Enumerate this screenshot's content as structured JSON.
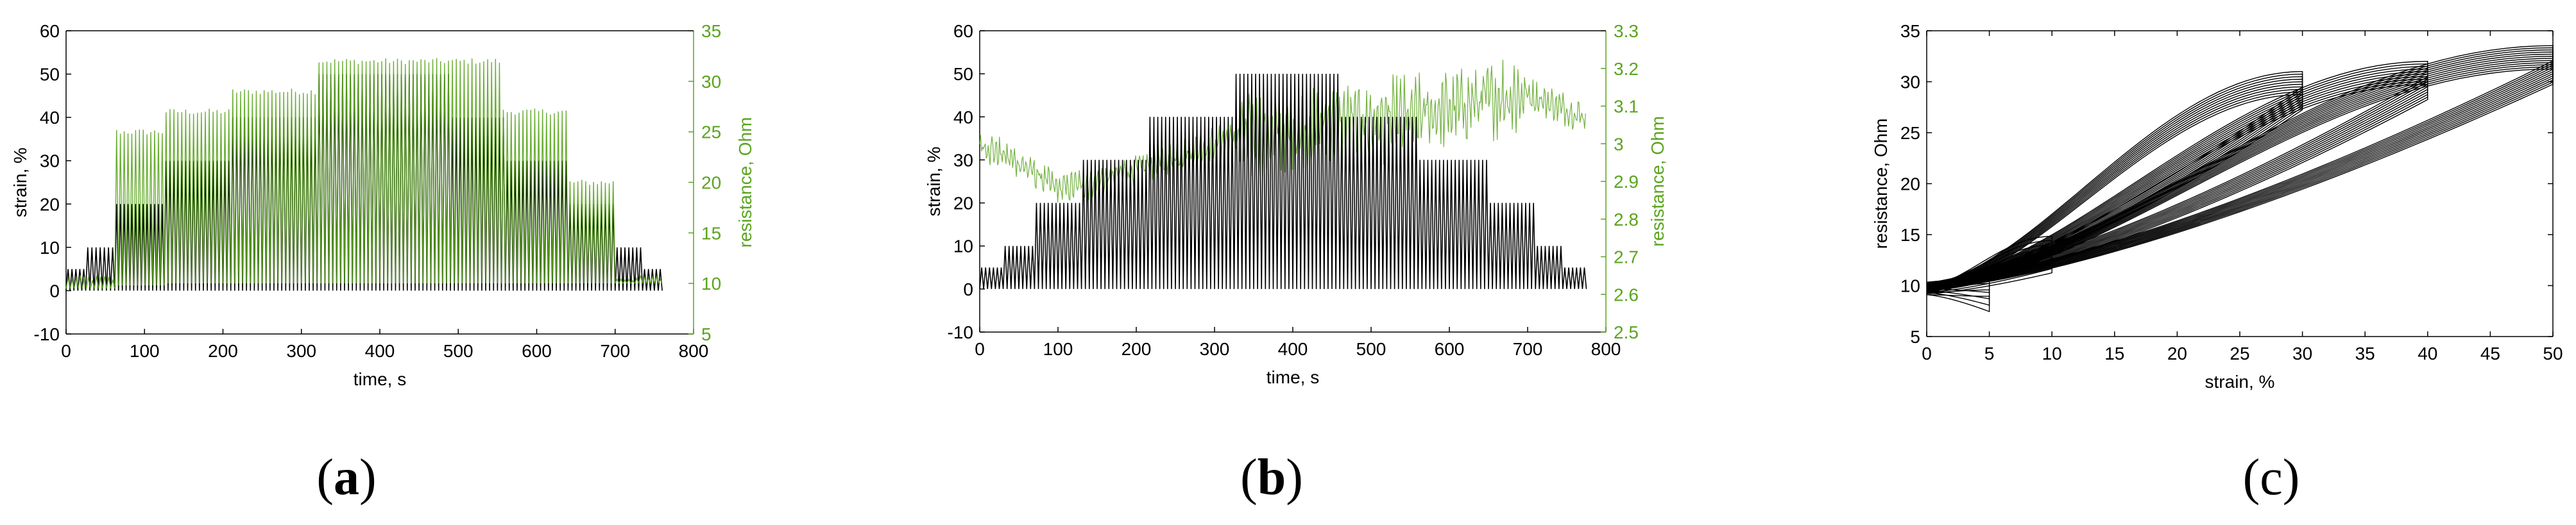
{
  "colors": {
    "strain": "#000000",
    "resistance": "#5aa51e",
    "axis": "#000000"
  },
  "captions": {
    "a": "a",
    "b": "b",
    "c": "c"
  },
  "chart_data": [
    {
      "id": "a",
      "type": "line",
      "xlabel": "time, s",
      "ylabel": "strain, %",
      "y2label": "resistance, Ohm",
      "xlim": [
        0,
        800
      ],
      "ylim": [
        -10,
        60
      ],
      "y2lim": [
        5,
        35
      ],
      "xticks": [
        0,
        100,
        200,
        300,
        400,
        500,
        600,
        700,
        800
      ],
      "yticks": [
        -10,
        0,
        10,
        20,
        30,
        40,
        50,
        60
      ],
      "y2ticks": [
        5,
        10,
        15,
        20,
        25,
        30,
        35
      ],
      "strain_segments": [
        {
          "t0": 0,
          "t1": 25,
          "amp": 5
        },
        {
          "t0": 25,
          "t1": 62,
          "amp": 10
        },
        {
          "t0": 62,
          "t1": 125,
          "amp": 20
        },
        {
          "t0": 125,
          "t1": 210,
          "amp": 30
        },
        {
          "t0": 210,
          "t1": 320,
          "amp": 40
        },
        {
          "t0": 320,
          "t1": 490,
          "amp": 50
        },
        {
          "t0": 490,
          "t1": 560,
          "amp": 40
        },
        {
          "t0": 560,
          "t1": 640,
          "amp": 30
        },
        {
          "t0": 640,
          "t1": 700,
          "amp": 20
        },
        {
          "t0": 700,
          "t1": 735,
          "amp": 10
        },
        {
          "t0": 735,
          "t1": 760,
          "amp": 5
        }
      ],
      "resistance_segments": [
        {
          "t0": 0,
          "t1": 62,
          "lo": 9.5,
          "hi": 10.5
        },
        {
          "t0": 62,
          "t1": 125,
          "lo": 9.8,
          "hi": 25
        },
        {
          "t0": 125,
          "t1": 210,
          "lo": 10,
          "hi": 27
        },
        {
          "t0": 210,
          "t1": 320,
          "lo": 10,
          "hi": 29
        },
        {
          "t0": 320,
          "t1": 555,
          "lo": 10,
          "hi": 32
        },
        {
          "t0": 555,
          "t1": 640,
          "lo": 10,
          "hi": 27
        },
        {
          "t0": 640,
          "t1": 700,
          "lo": 10,
          "hi": 20
        },
        {
          "t0": 700,
          "t1": 760,
          "lo": 10,
          "hi": 10.5
        }
      ]
    },
    {
      "id": "b",
      "type": "line",
      "xlabel": "time, s",
      "ylabel": "strain, %",
      "y2label": "resistance, Ohm",
      "xlim": [
        0,
        800
      ],
      "ylim": [
        -10,
        60
      ],
      "y2lim": [
        2.5,
        3.3
      ],
      "xticks": [
        0,
        100,
        200,
        300,
        400,
        500,
        600,
        700,
        800
      ],
      "yticks": [
        -10,
        0,
        10,
        20,
        30,
        40,
        50,
        60
      ],
      "y2ticks": [
        2.5,
        2.6,
        2.7,
        2.8,
        2.9,
        3,
        3.1,
        3.2,
        3.3
      ],
      "strain_segments": [
        {
          "t0": 0,
          "t1": 30,
          "amp": 5
        },
        {
          "t0": 30,
          "t1": 70,
          "amp": 10
        },
        {
          "t0": 70,
          "t1": 130,
          "amp": 20
        },
        {
          "t0": 130,
          "t1": 215,
          "amp": 30
        },
        {
          "t0": 215,
          "t1": 325,
          "amp": 40
        },
        {
          "t0": 325,
          "t1": 460,
          "amp": 50
        },
        {
          "t0": 460,
          "t1": 560,
          "amp": 40
        },
        {
          "t0": 560,
          "t1": 650,
          "amp": 30
        },
        {
          "t0": 650,
          "t1": 710,
          "amp": 20
        },
        {
          "t0": 710,
          "t1": 745,
          "amp": 10
        },
        {
          "t0": 745,
          "t1": 775,
          "amp": 5
        }
      ],
      "resistance_trend": [
        {
          "t": 0,
          "r": 3.0
        },
        {
          "t": 50,
          "r": 2.95
        },
        {
          "t": 100,
          "r": 2.88
        },
        {
          "t": 150,
          "r": 2.9
        },
        {
          "t": 200,
          "r": 2.93
        },
        {
          "t": 250,
          "r": 2.97
        },
        {
          "t": 300,
          "r": 3.0
        },
        {
          "t": 350,
          "r": 3.02
        },
        {
          "t": 400,
          "r": 3.04
        },
        {
          "t": 450,
          "r": 3.05
        },
        {
          "t": 500,
          "r": 3.06
        },
        {
          "t": 550,
          "r": 3.07
        },
        {
          "t": 600,
          "r": 3.09
        },
        {
          "t": 650,
          "r": 3.12
        },
        {
          "t": 700,
          "r": 3.13
        },
        {
          "t": 775,
          "r": 3.07
        }
      ]
    },
    {
      "id": "c",
      "type": "line",
      "xlabel": "strain, %",
      "ylabel": "resistance, Ohm",
      "xlim": [
        0,
        50
      ],
      "ylim": [
        5,
        35
      ],
      "xticks": [
        0,
        5,
        10,
        15,
        20,
        25,
        30,
        35,
        40,
        45,
        50
      ],
      "yticks": [
        5,
        10,
        15,
        20,
        25,
        30,
        35
      ],
      "loops": [
        {
          "max_strain": 5,
          "count": 4,
          "r_base": 9.5,
          "r_peak": 10.2
        },
        {
          "max_strain": 10,
          "count": 6,
          "r_base": 9.6,
          "r_peak": 14
        },
        {
          "max_strain": 30,
          "count": 10,
          "r_base": 9.8,
          "r_peak": 30
        },
        {
          "max_strain": 40,
          "count": 10,
          "r_base": 10,
          "r_peak": 31
        },
        {
          "max_strain": 50,
          "count": 12,
          "r_base": 10,
          "r_peak": 32.5
        }
      ]
    }
  ]
}
